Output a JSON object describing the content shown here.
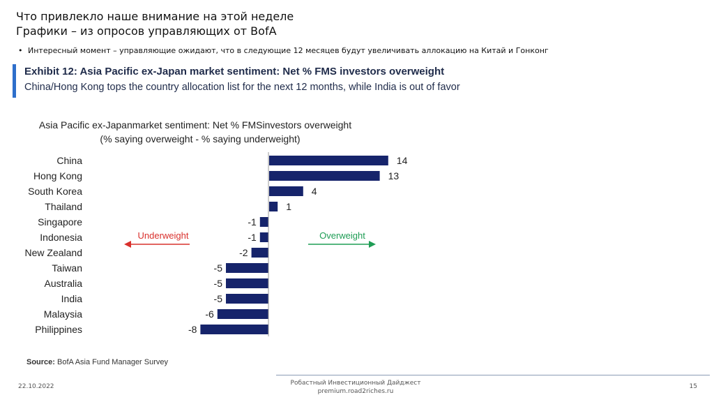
{
  "slide": {
    "title_line1": "Что привлекло наше внимание на этой неделе",
    "title_line2": "Графики – из опросов управляющих от BofA",
    "bullet_symbol": "•",
    "bullet_text": "Интересный момент – управляющие ожидают, что в следующие 12 месяцев будут увеличивать аллокацию на Китай и Гонконг"
  },
  "exhibit": {
    "title": "Exhibit 12: Asia Pacific ex-Japan market sentiment: Net % FMS investors overweight",
    "subtitle": "China/Hong Kong tops the country allocation list for the next 12 months, while India is out of favor",
    "accent_color": "#2e6fcb"
  },
  "chart_data": {
    "type": "bar",
    "orientation": "horizontal",
    "title": "Asia Pacific ex-Japanmarket sentiment:  Net % FMSinvestors overweight",
    "subtitle": "(% saying overweight  - % saying underweight)",
    "categories": [
      "China",
      "Hong Kong",
      "South Korea",
      "Thailand",
      "Singapore",
      "Indonesia",
      "New Zealand",
      "Taiwan",
      "Australia",
      "India",
      "Malaysia",
      "Philippines"
    ],
    "values": [
      14,
      13,
      4,
      1,
      -1,
      -1,
      -2,
      -5,
      -5,
      -5,
      -6,
      -8
    ],
    "value_labels": [
      "14",
      "13",
      "4",
      "1",
      "-1",
      "-1",
      "-2",
      "-5",
      "-5",
      "-5",
      "-6",
      "-8"
    ],
    "xlim": [
      -8,
      14
    ],
    "bar_color": "#16246b",
    "legend_left": {
      "label": "Underweight",
      "color": "#d9302c"
    },
    "legend_right": {
      "label": "Overweight",
      "color": "#1f9d55"
    }
  },
  "source": {
    "label": "Source:",
    "text": "BofA Asia Fund Manager Survey"
  },
  "footer": {
    "date": "22.10.2022",
    "line1": "Робастный Инвестиционный Дайджест",
    "line2": "premium.road2riches.ru",
    "page": "15"
  }
}
